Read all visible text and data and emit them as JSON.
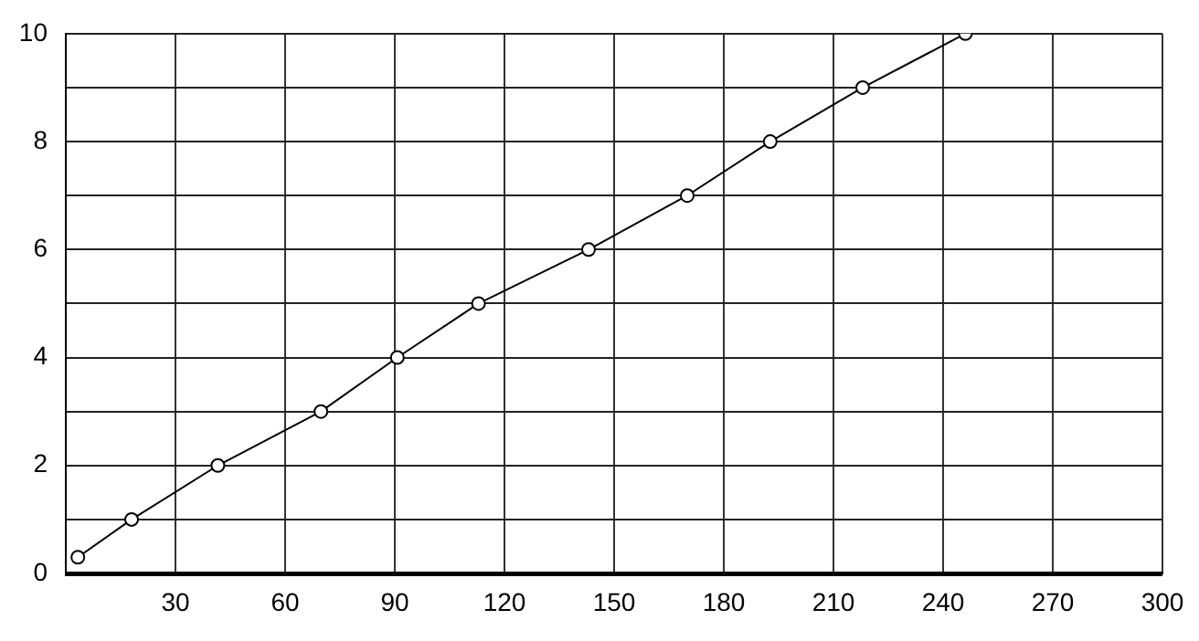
{
  "chart_data": {
    "type": "line",
    "x": [
      3.3,
      18,
      41.6,
      69.8,
      90.7,
      112.9,
      143,
      170,
      192.7,
      218,
      246.1
    ],
    "series": [
      {
        "color": "#000000",
        "values": [
          0.3,
          1,
          2,
          3,
          4,
          5,
          6,
          7,
          8,
          9,
          10
        ]
      }
    ],
    "xlim": [
      0,
      300
    ],
    "xticks": [
      {
        "value": 0,
        "label": null
      },
      30,
      60,
      90,
      120,
      150,
      180,
      210,
      240,
      270,
      300
    ],
    "ylim": [
      0,
      10
    ],
    "yticks": [
      0,
      {
        "value": 1,
        "label": null
      },
      2,
      {
        "value": 3,
        "label": null
      },
      4,
      {
        "value": 5,
        "label": null
      },
      6,
      {
        "value": 7,
        "label": null
      },
      8,
      {
        "value": 9,
        "label": null
      },
      10
    ],
    "grid": true,
    "marker": "circle",
    "line_style": "solid"
  }
}
